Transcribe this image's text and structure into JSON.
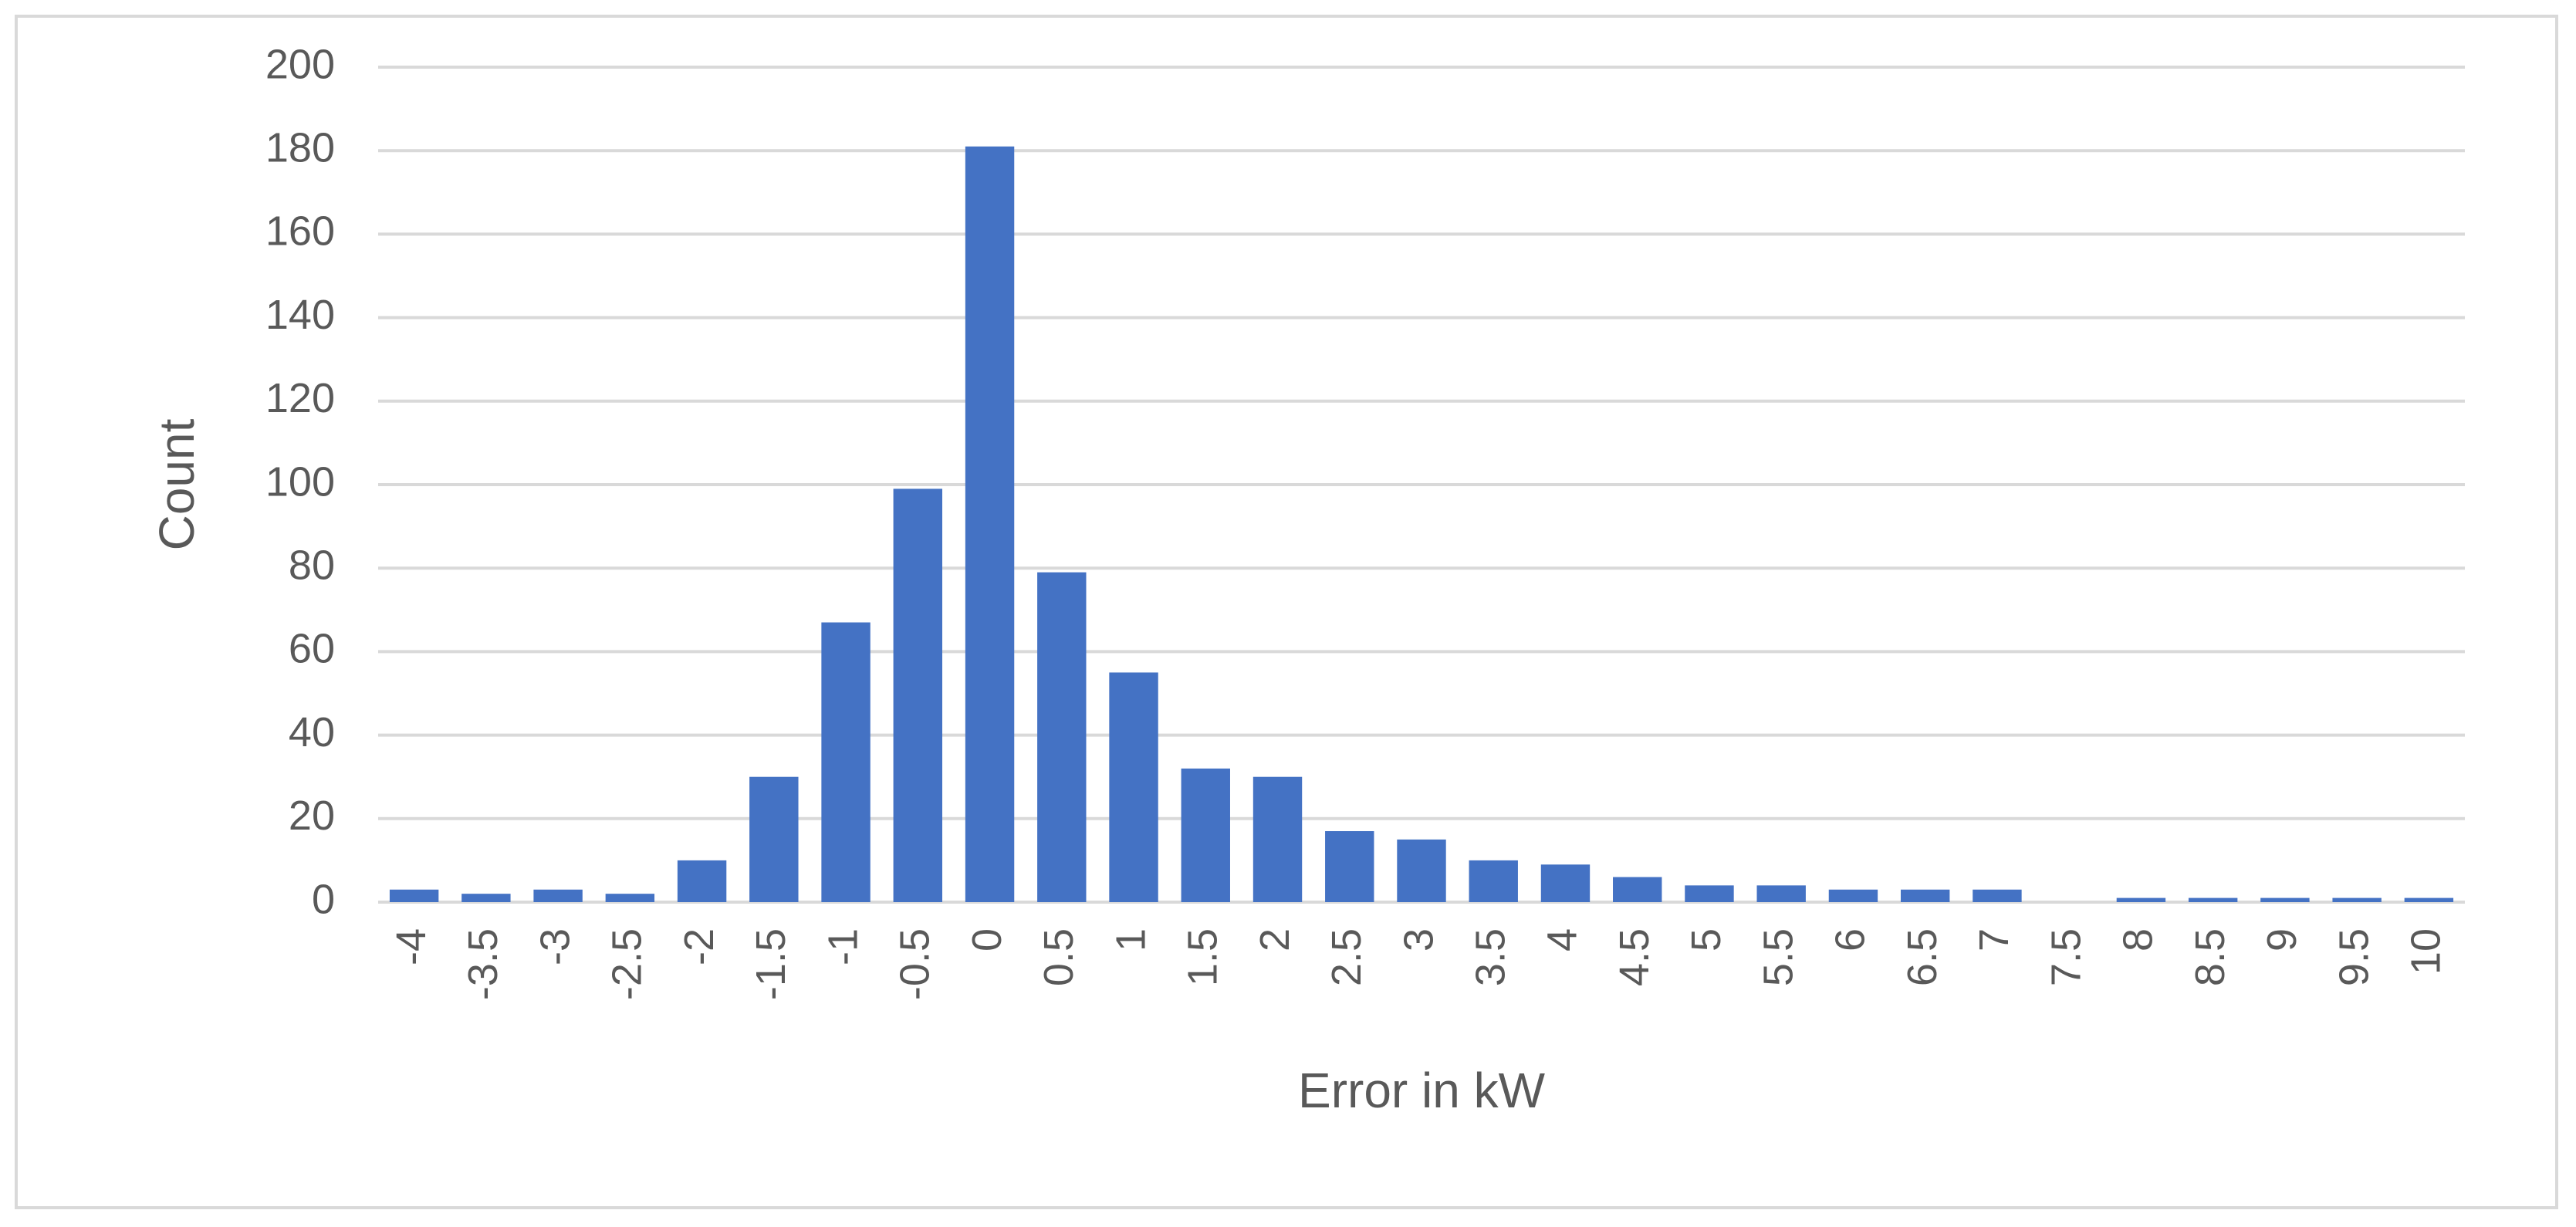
{
  "chart_data": {
    "type": "bar",
    "x_label": "Error in kW",
    "y_label": "Count",
    "categories": [
      "-4",
      "-3.5",
      "-3",
      "-2.5",
      "-2",
      "-1.5",
      "-1",
      "-0.5",
      "0",
      "0.5",
      "1",
      "1.5",
      "2",
      "2.5",
      "3",
      "3.5",
      "4",
      "4.5",
      "5",
      "5.5",
      "6",
      "6.5",
      "7",
      "7.5",
      "8",
      "8.5",
      "9",
      "9.5",
      "10"
    ],
    "values": [
      3,
      2,
      3,
      2,
      10,
      30,
      67,
      99,
      181,
      79,
      55,
      32,
      30,
      17,
      15,
      10,
      9,
      6,
      4,
      4,
      3,
      3,
      3,
      0,
      1,
      1,
      1,
      1,
      1
    ],
    "color": "#4472c4",
    "ylim": [
      0,
      200
    ],
    "yticks": [
      0,
      20,
      40,
      60,
      80,
      100,
      120,
      140,
      160,
      180,
      200
    ],
    "grid": true
  }
}
